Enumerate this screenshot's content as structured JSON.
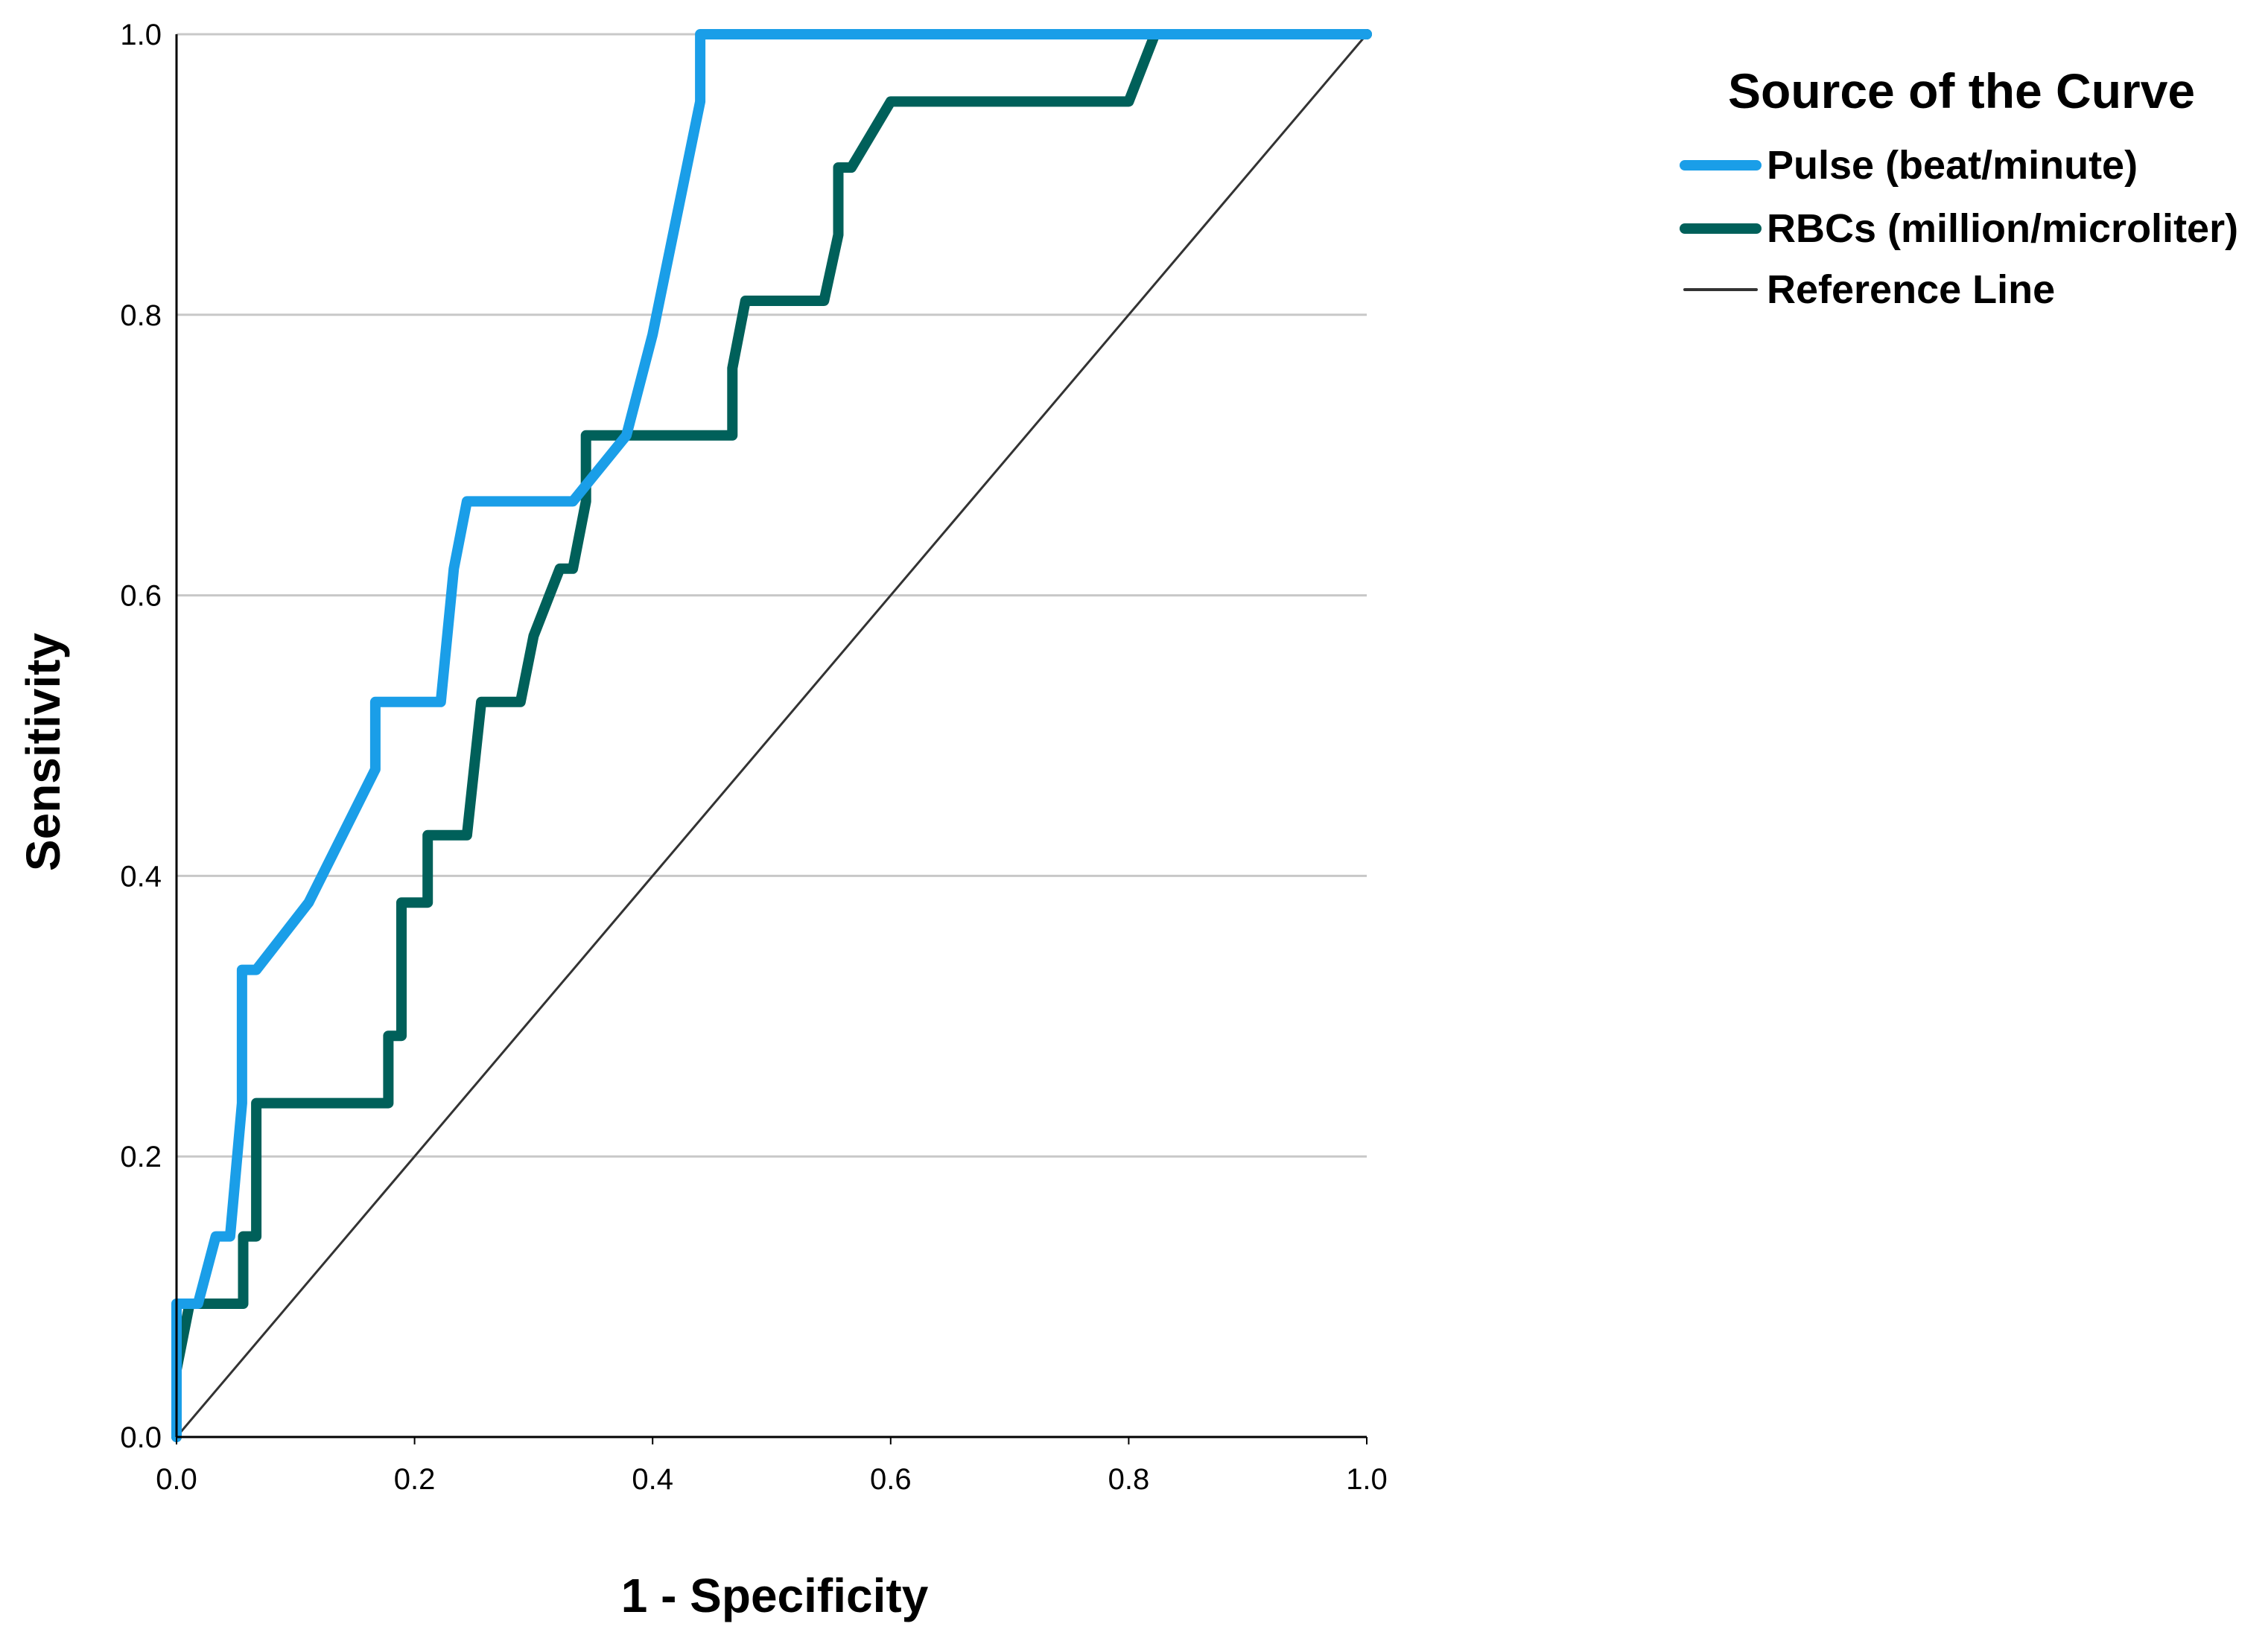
{
  "chart_data": {
    "type": "line",
    "title": "",
    "xlabel": "1 - Specificity",
    "ylabel": "Sensitivity",
    "xlim": [
      0,
      1
    ],
    "ylim": [
      0,
      1
    ],
    "x_ticks": [
      "0.0",
      "0.2",
      "0.4",
      "0.6",
      "0.8",
      "1.0"
    ],
    "y_ticks": [
      "0.0",
      "0.2",
      "0.4",
      "0.6",
      "0.8",
      "1.0"
    ],
    "grid": "horizontal",
    "legend": {
      "title": "Source of the Curve",
      "placement": "top-right, outside plot"
    },
    "series": [
      {
        "name": "Pulse (beat/minute)",
        "color": "#1a9ee8",
        "width": "thick",
        "points": [
          [
            0,
            0
          ],
          [
            0,
            0.095
          ],
          [
            0.018,
            0.095
          ],
          [
            0.033,
            0.143
          ],
          [
            0.045,
            0.143
          ],
          [
            0.055,
            0.238
          ],
          [
            0.055,
            0.333
          ],
          [
            0.067,
            0.333
          ],
          [
            0.111,
            0.381
          ],
          [
            0.167,
            0.476
          ],
          [
            0.167,
            0.524
          ],
          [
            0.222,
            0.524
          ],
          [
            0.233,
            0.619
          ],
          [
            0.244,
            0.667
          ],
          [
            0.333,
            0.667
          ],
          [
            0.378,
            0.714
          ],
          [
            0.4,
            0.786
          ],
          [
            0.44,
            0.952
          ],
          [
            0.44,
            1.0
          ],
          [
            1.0,
            1.0
          ]
        ]
      },
      {
        "name": "RBCs (million/microliter)",
        "color": "#00605a",
        "width": "thick",
        "points": [
          [
            0,
            0
          ],
          [
            0,
            0.048
          ],
          [
            0.011,
            0.095
          ],
          [
            0.056,
            0.095
          ],
          [
            0.056,
            0.143
          ],
          [
            0.067,
            0.143
          ],
          [
            0.067,
            0.238
          ],
          [
            0.178,
            0.238
          ],
          [
            0.178,
            0.286
          ],
          [
            0.189,
            0.286
          ],
          [
            0.189,
            0.381
          ],
          [
            0.211,
            0.381
          ],
          [
            0.211,
            0.429
          ],
          [
            0.244,
            0.429
          ],
          [
            0.256,
            0.524
          ],
          [
            0.289,
            0.524
          ],
          [
            0.3,
            0.571
          ],
          [
            0.322,
            0.619
          ],
          [
            0.333,
            0.619
          ],
          [
            0.344,
            0.667
          ],
          [
            0.344,
            0.714
          ],
          [
            0.467,
            0.714
          ],
          [
            0.467,
            0.762
          ],
          [
            0.478,
            0.81
          ],
          [
            0.544,
            0.81
          ],
          [
            0.556,
            0.857
          ],
          [
            0.556,
            0.905
          ],
          [
            0.567,
            0.905
          ],
          [
            0.6,
            0.952
          ],
          [
            0.8,
            0.952
          ],
          [
            0.822,
            1.0
          ],
          [
            1.0,
            1.0
          ]
        ]
      },
      {
        "name": "Reference Line",
        "color": "#333333",
        "width": "thin",
        "points": [
          [
            0,
            0
          ],
          [
            1,
            1
          ]
        ]
      }
    ]
  }
}
